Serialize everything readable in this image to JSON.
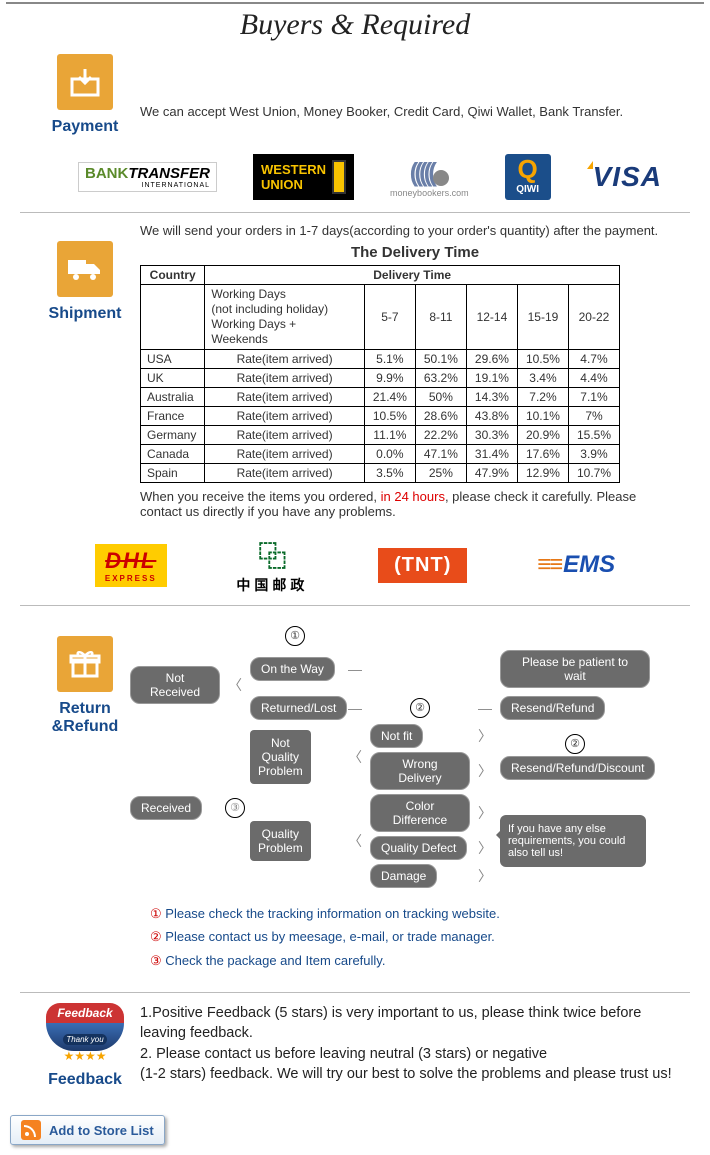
{
  "header_title": "Buyers & Required",
  "colors": {
    "accent": "#174a8a",
    "icon_bg": "#e9a537",
    "pill_bg": "#6b6b6b",
    "red": "#d00"
  },
  "payment": {
    "label": "Payment",
    "text": "We can accept West Union, Money Booker, Credit Card, Qiwi Wallet, Bank Transfer.",
    "logos": {
      "bank_transfer": {
        "t1": "BANK",
        "t2": "TRANSFER",
        "sub": "INTERNATIONAL"
      },
      "western_union": {
        "t1": "WESTERN",
        "t2": "UNION"
      },
      "moneybookers": "moneybookers.com",
      "qiwi": "QIWI",
      "visa": "VISA"
    }
  },
  "shipment": {
    "label": "Shipment",
    "intro": "We will send your orders in 1-7 days(according to your order's quantity) after the payment.",
    "table_title": "The Delivery Time",
    "headers": {
      "country": "Country",
      "delivery": "Delivery Time"
    },
    "subhead": {
      "line1": "Working Days",
      "line2": "(not including holiday)",
      "line3": "Working Days + Weekends"
    },
    "periods": [
      "5-7",
      "8-11",
      "12-14",
      "15-19",
      "20-22"
    ],
    "rate_label": "Rate(item arrived)",
    "rows": [
      {
        "country": "USA",
        "vals": [
          "5.1%",
          "50.1%",
          "29.6%",
          "10.5%",
          "4.7%"
        ]
      },
      {
        "country": "UK",
        "vals": [
          "9.9%",
          "63.2%",
          "19.1%",
          "3.4%",
          "4.4%"
        ]
      },
      {
        "country": "Australia",
        "vals": [
          "21.4%",
          "50%",
          "14.3%",
          "7.2%",
          "7.1%"
        ]
      },
      {
        "country": "France",
        "vals": [
          "10.5%",
          "28.6%",
          "43.8%",
          "10.1%",
          "7%"
        ]
      },
      {
        "country": "Germany",
        "vals": [
          "11.1%",
          "22.2%",
          "30.3%",
          "20.9%",
          "15.5%"
        ]
      },
      {
        "country": "Canada",
        "vals": [
          "0.0%",
          "47.1%",
          "31.4%",
          "17.6%",
          "3.9%"
        ]
      },
      {
        "country": "Spain",
        "vals": [
          "3.5%",
          "25%",
          "47.9%",
          "12.9%",
          "10.7%"
        ]
      }
    ],
    "note1": "When you receive the items you ordered, ",
    "note_red": "in 24 hours",
    "note2": ", please check it carefully. Please contact us directly if you have any problems.",
    "carriers": {
      "dhl": "DHL",
      "dhl_sub": "EXPRESS",
      "chinapost": "中国邮政",
      "tnt": "TNT",
      "ems": "EMS"
    }
  },
  "return": {
    "label": "Return &Refund",
    "nodes": {
      "not_received": "Not Received",
      "on_the_way": "On the Way",
      "returned_lost": "Returned/Lost",
      "patient": "Please be patient to wait",
      "resend_refund": "Resend/Refund",
      "received": "Received",
      "not_quality": "Not\nQuality\nProblem",
      "quality": "Quality\nProblem",
      "not_fit": "Not fit",
      "wrong_delivery": "Wrong Delivery",
      "color_diff": "Color Difference",
      "quality_defect": "Quality Defect",
      "damage": "Damage",
      "resend_discount": "Resend/Refund/Discount",
      "speech": "If you have any else requirements, you could also tell us!"
    },
    "nums": {
      "n1": "①",
      "n2": "②",
      "n3": "③"
    },
    "notes": [
      "Please check the tracking information on tracking website.",
      "Please contact us by meesage, e-mail, or trade manager.",
      "Check the package and Item carefully."
    ]
  },
  "feedback": {
    "label": "Feedback",
    "badge_top": "Feedback",
    "badge_thank": "Thank you",
    "lines": [
      "1.Positive Feedback (5 stars) is very important to us, please think twice before leaving feedback.",
      "2. Please contact us before leaving neutral (3 stars) or negative",
      "(1-2 stars) feedback. We will try our best to solve the problems and please trust us!"
    ]
  },
  "store_button": "Add to Store List"
}
